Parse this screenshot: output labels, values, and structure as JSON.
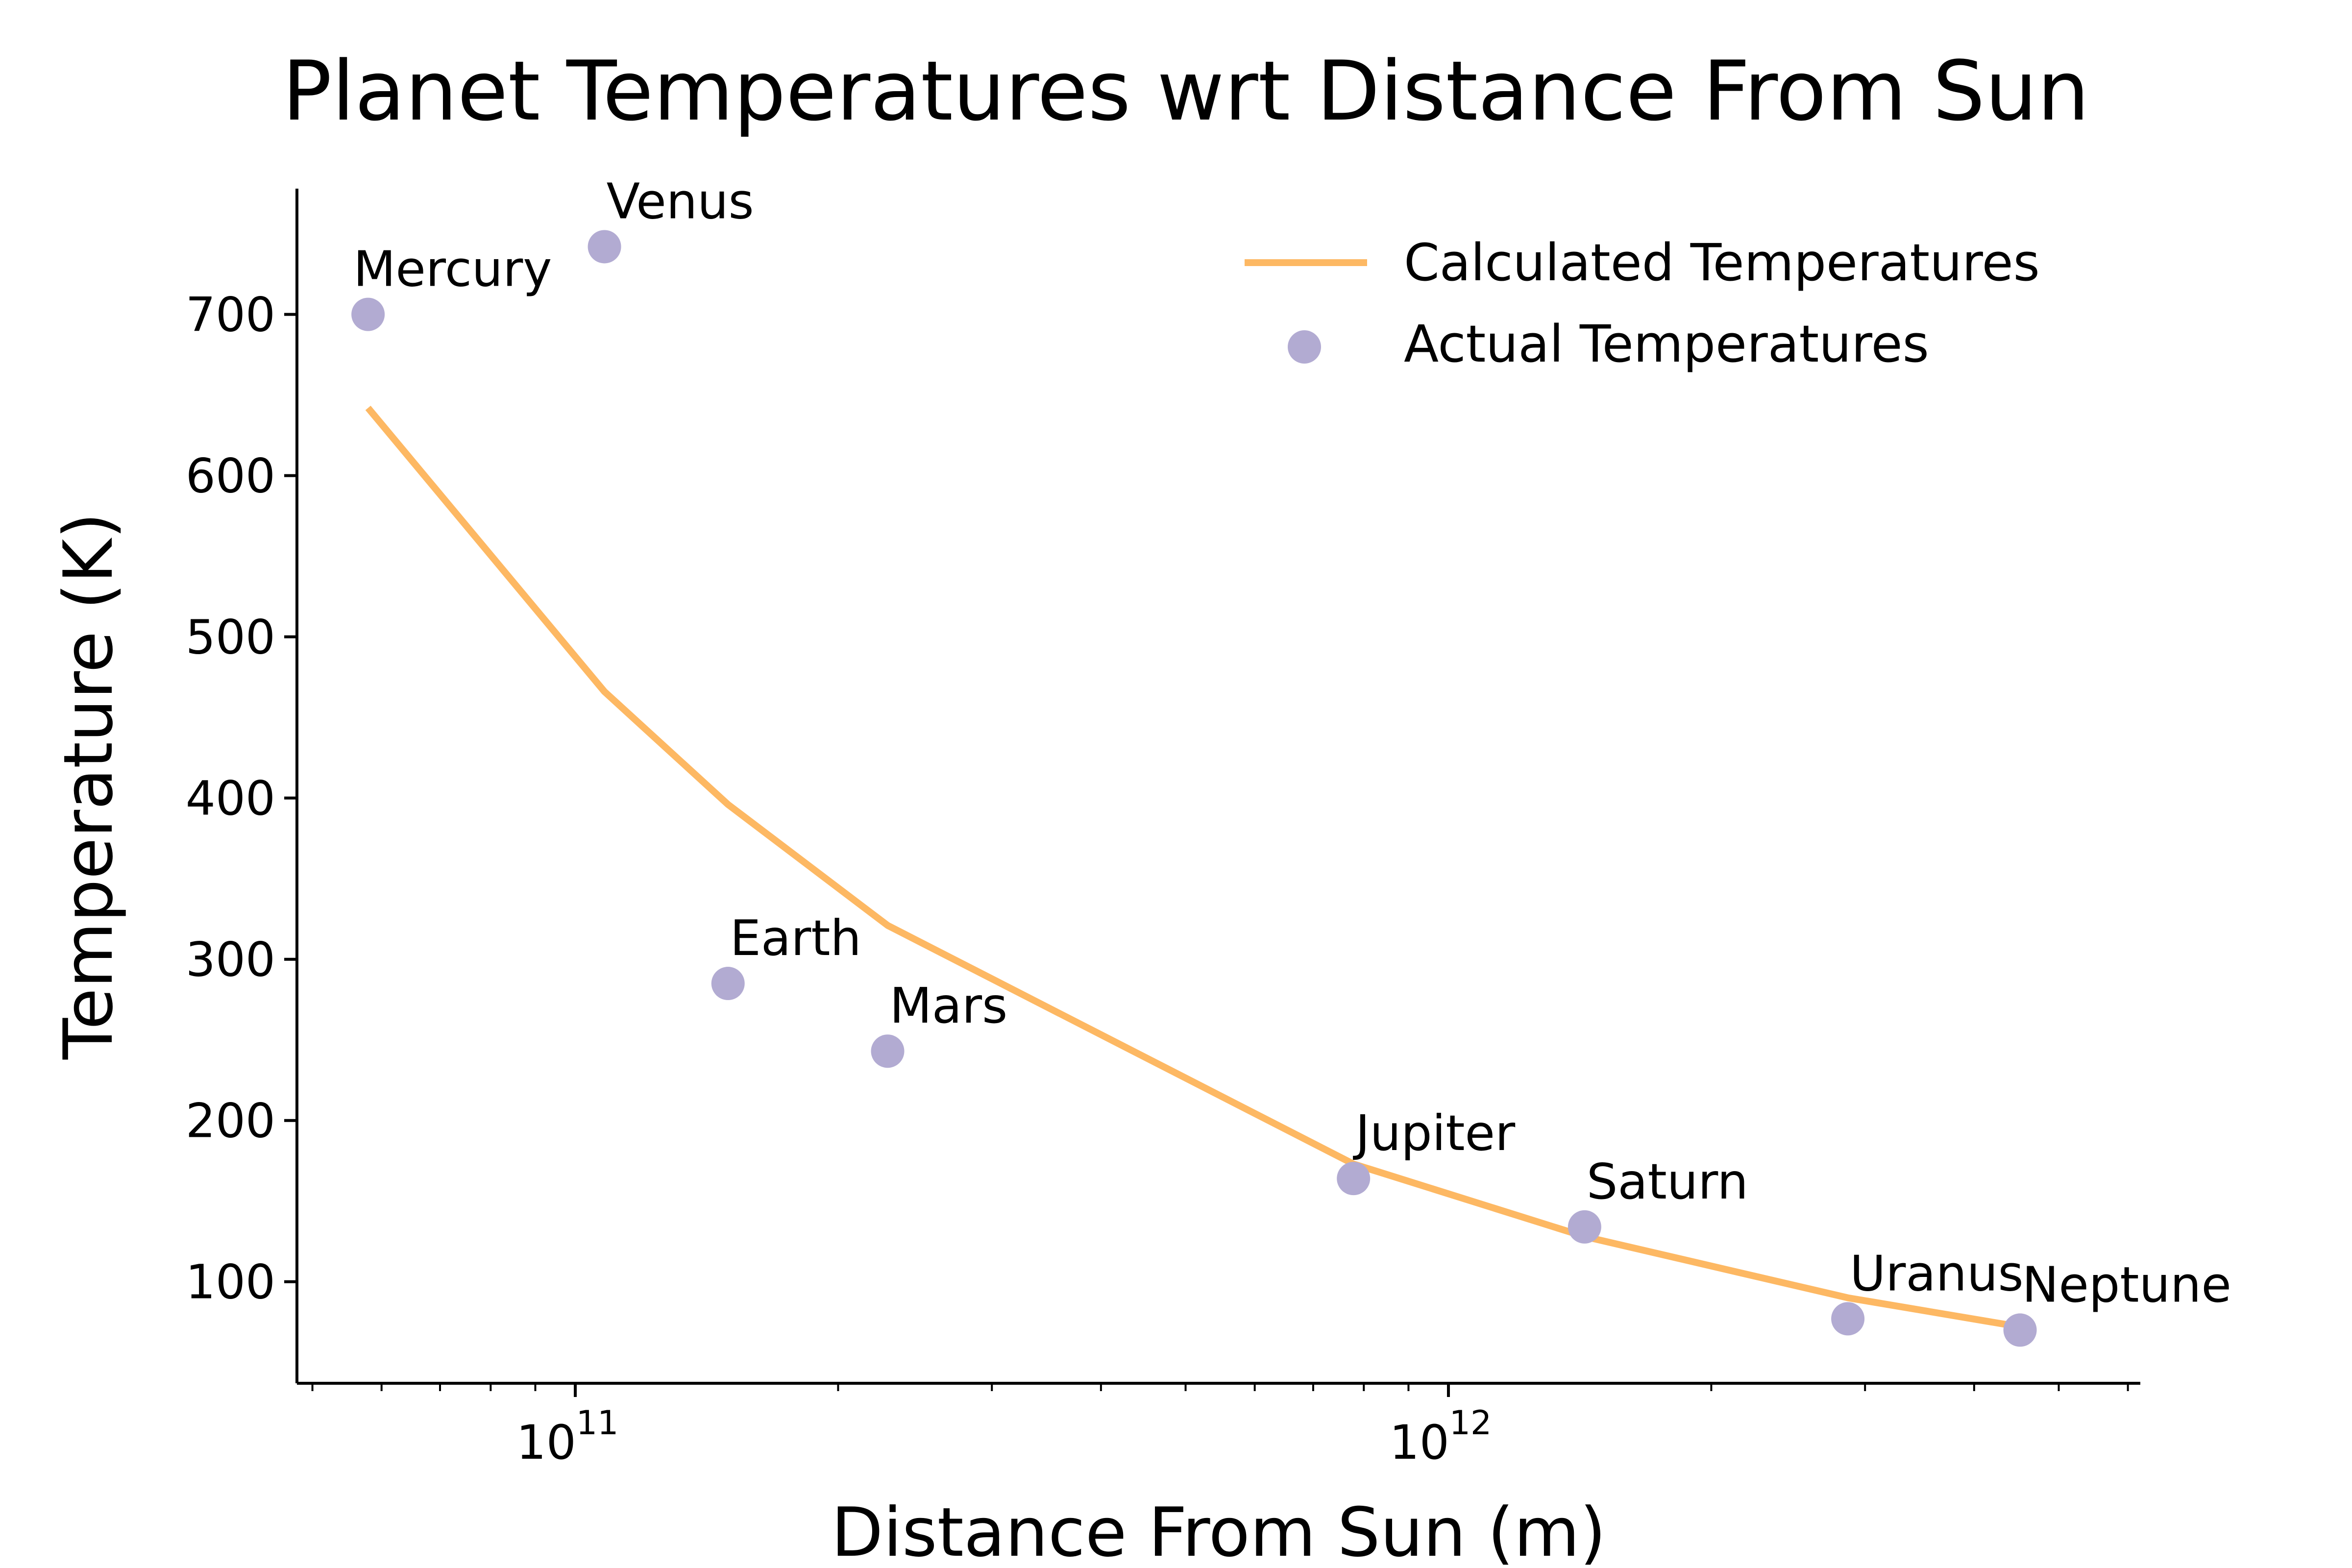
{
  "chart_data": {
    "type": "scatter",
    "title": "Planet Temperatures wrt Distance From Sun",
    "xlabel": "Distance From Sun (m)",
    "ylabel": "Temperature (K)",
    "x_scale": "log",
    "xlim": [
      48000000000.0,
      6200000000000.0
    ],
    "ylim": [
      37,
      778
    ],
    "x_major_ticks": [
      {
        "value": 100000000000.0,
        "base": "10",
        "exponent": "11"
      },
      {
        "value": 1000000000000.0,
        "base": "10",
        "exponent": "12"
      }
    ],
    "y_ticks": [
      100,
      200,
      300,
      400,
      500,
      600,
      700
    ],
    "grid": false,
    "legend": {
      "position": "top-right",
      "entries": [
        {
          "label": "Calculated Temperatures",
          "kind": "line"
        },
        {
          "label": "Actual Temperatures",
          "kind": "marker"
        }
      ]
    },
    "colors": {
      "line": "#fdb863",
      "marker": "#b2abd2"
    },
    "series": [
      {
        "name": "Calculated Temperatures",
        "kind": "line",
        "points": [
          {
            "x": 57900000000.0,
            "y": 642
          },
          {
            "x": 108000000000.0,
            "y": 466
          },
          {
            "x": 149600000000.0,
            "y": 396
          },
          {
            "x": 227900000000.0,
            "y": 321
          },
          {
            "x": 778500000000.0,
            "y": 173
          },
          {
            "x": 1432000000000.0,
            "y": 128
          },
          {
            "x": 2867000000000.0,
            "y": 90
          },
          {
            "x": 4515000000000.0,
            "y": 72
          }
        ]
      },
      {
        "name": "Actual Temperatures",
        "kind": "scatter",
        "points": [
          {
            "label": "Mercury",
            "x": 57900000000.0,
            "y": 700
          },
          {
            "label": "Venus",
            "x": 108000000000.0,
            "y": 742
          },
          {
            "label": "Earth",
            "x": 149600000000.0,
            "y": 285
          },
          {
            "label": "Mars",
            "x": 227900000000.0,
            "y": 243
          },
          {
            "label": "Jupiter",
            "x": 778500000000.0,
            "y": 164
          },
          {
            "label": "Saturn",
            "x": 1432000000000.0,
            "y": 134
          },
          {
            "label": "Uranus",
            "x": 2867000000000.0,
            "y": 77
          },
          {
            "label": "Neptune",
            "x": 4515000000000.0,
            "y": 70
          }
        ]
      }
    ]
  }
}
